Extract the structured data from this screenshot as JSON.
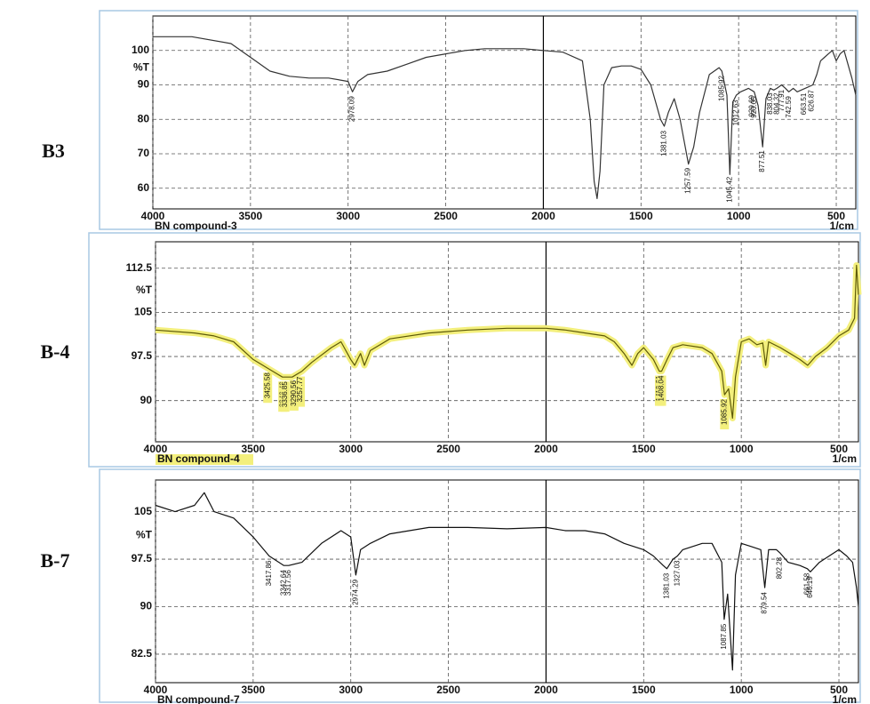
{
  "chart_data": [
    {
      "type": "line",
      "label": "B3",
      "xlabel": "BN compound-3",
      "xunit": "1/cm",
      "ylabel": "%T",
      "xlim": [
        4000,
        400
      ],
      "xticks": [
        4000,
        3500,
        3000,
        2500,
        2000,
        1500,
        1000,
        500
      ],
      "xsplit": 2000,
      "ylim": [
        54,
        110
      ],
      "yticks": [
        60,
        70,
        80,
        90,
        100
      ],
      "grid": true,
      "color": "#333333",
      "x": [
        4000,
        3800,
        3600,
        3500,
        3400,
        3300,
        3200,
        3100,
        3000,
        2978,
        2950,
        2900,
        2800,
        2700,
        2600,
        2500,
        2400,
        2300,
        2200,
        2100,
        2000,
        1900,
        1800,
        1760,
        1740,
        1725,
        1710,
        1690,
        1650,
        1600,
        1550,
        1500,
        1450,
        1400,
        1381,
        1360,
        1330,
        1300,
        1257,
        1230,
        1200,
        1150,
        1100,
        1086,
        1060,
        1045,
        1030,
        1012,
        990,
        950,
        920,
        900,
        877,
        860,
        838,
        820,
        804,
        780,
        760,
        743,
        720,
        700,
        660,
        620,
        600,
        580,
        560,
        540,
        520,
        500,
        480,
        460,
        440,
        420,
        400
      ],
      "values": [
        104,
        104,
        102,
        98,
        94,
        92.5,
        92,
        92,
        91,
        88,
        91,
        93,
        94,
        96,
        98,
        99,
        100,
        100.5,
        100.5,
        100.5,
        100,
        99.5,
        97,
        80,
        62,
        57,
        65,
        90,
        95,
        95.5,
        95.5,
        94.5,
        90,
        80,
        78,
        82,
        86,
        80,
        67,
        72,
        82,
        93,
        95,
        94,
        87,
        64,
        85,
        87,
        88,
        89,
        88,
        84,
        72,
        86,
        89,
        88.5,
        89,
        90,
        89,
        88,
        89,
        88,
        89,
        90,
        93,
        97,
        98,
        99,
        100,
        97,
        99,
        100,
        96,
        92,
        87
      ],
      "peaks": [
        2978.09,
        1381.03,
        1257.59,
        1085.92,
        1045.42,
        1012.63,
        929.69,
        920.05,
        877.51,
        838.03,
        804.32,
        777.91,
        742.59,
        663.51,
        626.87
      ]
    },
    {
      "type": "line",
      "label": "B-4",
      "xlabel": "BN compound-4",
      "xunit": "1/cm",
      "ylabel": "%T",
      "highlight": "#f3ef7c",
      "xlim": [
        4000,
        400
      ],
      "xticks": [
        4000,
        3500,
        3000,
        2500,
        2000,
        1500,
        1000,
        500
      ],
      "xsplit": 2000,
      "ylim": [
        83,
        117
      ],
      "yticks": [
        90,
        97.5,
        105,
        112.5
      ],
      "grid": true,
      "color": "#5e5a08",
      "x": [
        4000,
        3800,
        3700,
        3600,
        3500,
        3400,
        3350,
        3300,
        3250,
        3200,
        3100,
        3050,
        3000,
        2980,
        2950,
        2930,
        2900,
        2800,
        2600,
        2400,
        2200,
        2000,
        1900,
        1800,
        1700,
        1650,
        1600,
        1560,
        1530,
        1500,
        1450,
        1420,
        1408,
        1380,
        1350,
        1300,
        1200,
        1150,
        1100,
        1086,
        1065,
        1045,
        1030,
        1000,
        960,
        920,
        890,
        875,
        860,
        800,
        750,
        700,
        660,
        620,
        560,
        500,
        450,
        420,
        410,
        400
      ],
      "values": [
        102,
        101.5,
        101,
        100,
        97,
        95,
        94,
        94,
        95,
        96.5,
        99,
        100,
        97,
        96,
        98,
        96,
        98.5,
        100.5,
        101.5,
        102,
        102.3,
        102.3,
        102,
        101.5,
        101,
        100,
        98,
        96,
        98,
        99,
        97,
        95,
        95,
        97,
        99,
        99.5,
        99,
        98,
        95,
        91,
        92,
        87,
        94,
        100,
        100.5,
        99.5,
        99.8,
        96,
        100,
        99,
        98,
        97,
        96,
        97.5,
        99,
        101,
        102,
        104,
        113,
        108
      ],
      "peaks": [
        3425.58,
        3348.42,
        3336.85,
        3290.56,
        3257.77,
        1419.61,
        1408.04,
        1085.92
      ]
    },
    {
      "type": "line",
      "label": "B-7",
      "xlabel": "BN compound-7",
      "xunit": "1/cm",
      "ylabel": "%T",
      "xlim": [
        4000,
        400
      ],
      "xticks": [
        4000,
        3500,
        3000,
        2500,
        2000,
        1500,
        1000,
        500
      ],
      "xsplit": 2000,
      "ylim": [
        78,
        110
      ],
      "yticks": [
        82.5,
        90,
        97.5,
        105
      ],
      "grid": true,
      "color": "#111111",
      "x": [
        4000,
        3900,
        3800,
        3750,
        3700,
        3600,
        3500,
        3417.86,
        3342.64,
        3317.56,
        3250,
        3150,
        3050,
        3000,
        2974.29,
        2950,
        2900,
        2800,
        2600,
        2400,
        2200,
        2000,
        1900,
        1800,
        1700,
        1600,
        1500,
        1450,
        1400,
        1381.03,
        1350,
        1327.03,
        1300,
        1200,
        1150,
        1100,
        1087.85,
        1070,
        1045,
        1030,
        1000,
        950,
        900,
        879.54,
        860,
        820,
        802.28,
        760,
        700,
        661.58,
        646.19,
        600,
        550,
        500,
        460,
        430,
        410,
        400
      ],
      "values": [
        106,
        105,
        106,
        108,
        105,
        104,
        101,
        98,
        96.5,
        96.5,
        97,
        100,
        102,
        101,
        95,
        99,
        100,
        101.5,
        102.5,
        102.5,
        102.3,
        102.5,
        102,
        102,
        101.5,
        100,
        99,
        98,
        96.5,
        96,
        97.5,
        98,
        99,
        100,
        100,
        97,
        88,
        92,
        80,
        95,
        100,
        99.5,
        99,
        93,
        99,
        99,
        98.5,
        97,
        96.5,
        96,
        95.5,
        97,
        98,
        99,
        98,
        97,
        93,
        90
      ],
      "peaks": [
        3417.86,
        3342.64,
        3317.56,
        2974.29,
        1381.03,
        1327.03,
        1087.85,
        879.54,
        802.28,
        661.58,
        646.19
      ]
    }
  ]
}
